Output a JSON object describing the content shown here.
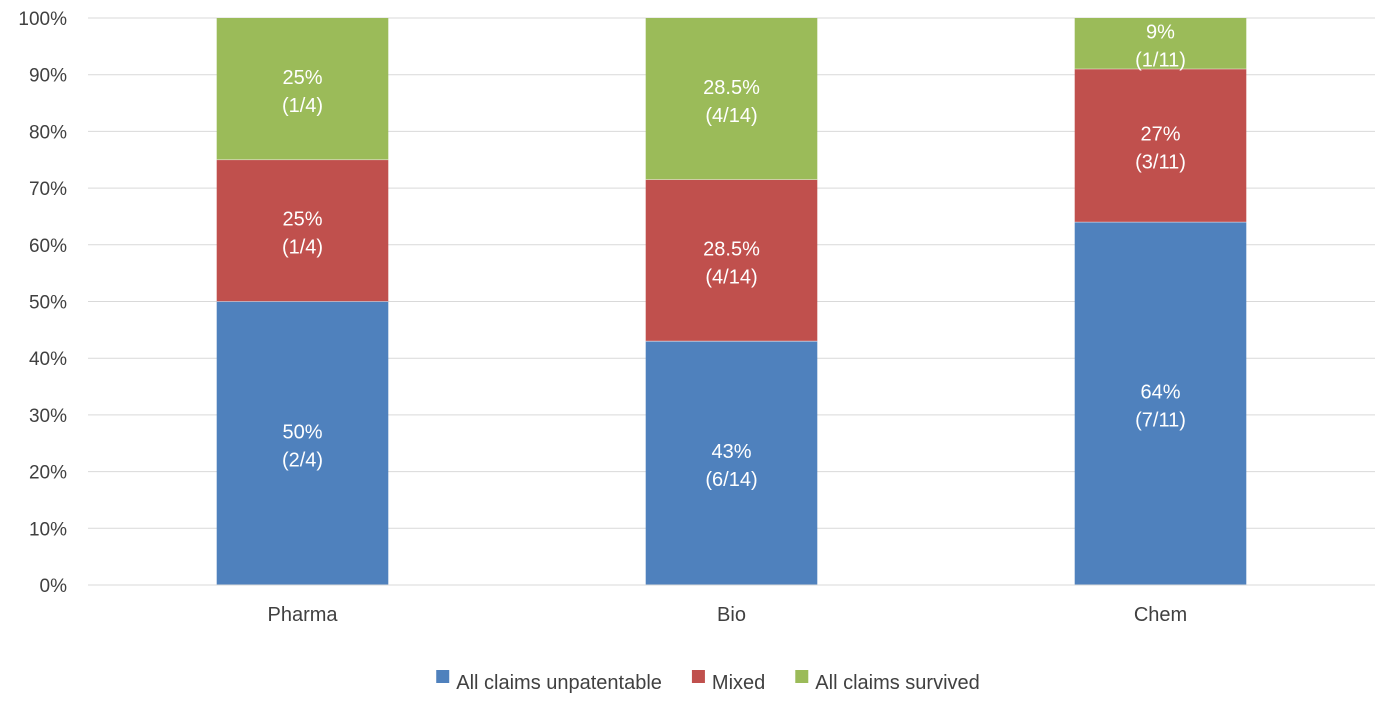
{
  "chart_data": {
    "type": "bar",
    "stacked": true,
    "categories": [
      "Pharma",
      "Bio",
      "Chem"
    ],
    "series": [
      {
        "name": "All claims unpatentable",
        "color": "#4F81BD",
        "values": [
          50,
          43,
          64
        ],
        "labels": [
          [
            "50%",
            "(2/4)"
          ],
          [
            "43%",
            "(6/14)"
          ],
          [
            "64%",
            "(7/11)"
          ]
        ]
      },
      {
        "name": "Mixed",
        "color": "#C0504D",
        "values": [
          25,
          28.5,
          27
        ],
        "labels": [
          [
            "25%",
            "(1/4)"
          ],
          [
            "28.5%",
            "(4/14)"
          ],
          [
            "27%",
            "(3/11)"
          ]
        ]
      },
      {
        "name": "All claims survived",
        "color": "#9BBB59",
        "values": [
          25,
          28.5,
          9
        ],
        "labels": [
          [
            "25%",
            "(1/4)"
          ],
          [
            "28.5%",
            "(4/14)"
          ],
          [
            "9%",
            "(1/11)"
          ]
        ]
      }
    ],
    "ylim": [
      0,
      100
    ],
    "yticks": [
      "0%",
      "10%",
      "20%",
      "30%",
      "40%",
      "50%",
      "60%",
      "70%",
      "80%",
      "90%",
      "100%"
    ],
    "title": "",
    "xlabel": "",
    "ylabel": "",
    "grid": true,
    "legend_position": "bottom"
  }
}
